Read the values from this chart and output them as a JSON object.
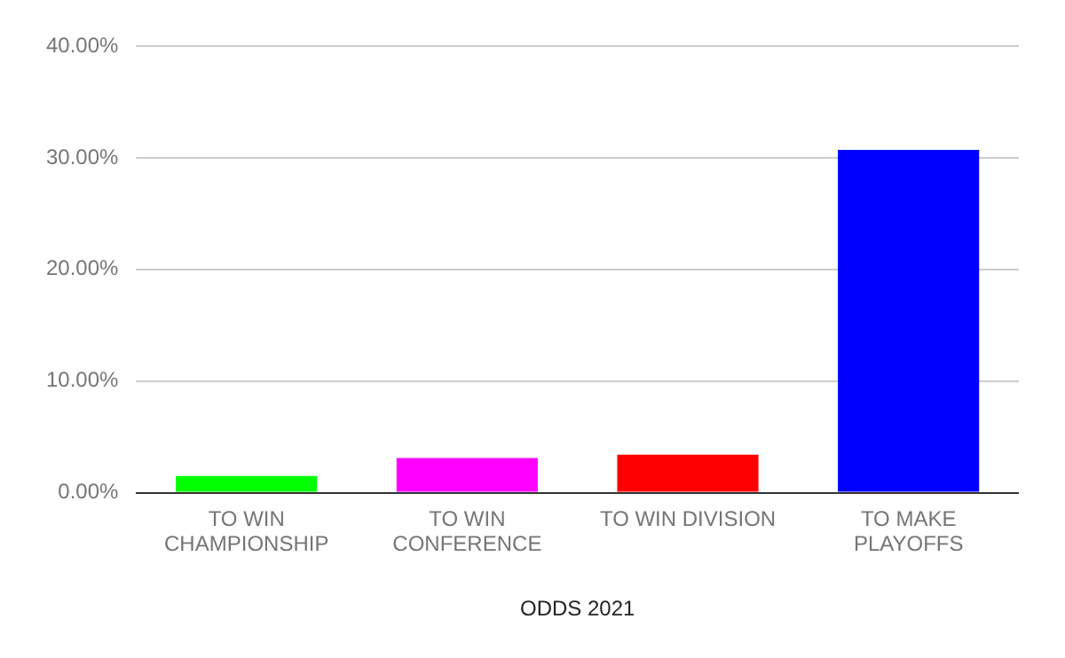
{
  "chart_data": {
    "type": "bar",
    "xlabel": "ODDS 2021",
    "categories": [
      "TO WIN CHAMPIONSHIP",
      "TO WIN CONFERENCE",
      "TO WIN DIVISION",
      "TO MAKE PLAYOFFS"
    ],
    "values": [
      1.5,
      3.1,
      3.4,
      30.7
    ],
    "colors": [
      "#00ff00",
      "#ff00ff",
      "#ff0000",
      "#0000ff"
    ],
    "ylim": [
      0,
      40
    ],
    "yticks": [
      {
        "value": 0,
        "label": "0.00%"
      },
      {
        "value": 10,
        "label": "10.00%"
      },
      {
        "value": 20,
        "label": "20.00%"
      },
      {
        "value": 30,
        "label": "30.00%"
      },
      {
        "value": 40,
        "label": "40.00%"
      }
    ],
    "grid": "y",
    "legend": false
  }
}
